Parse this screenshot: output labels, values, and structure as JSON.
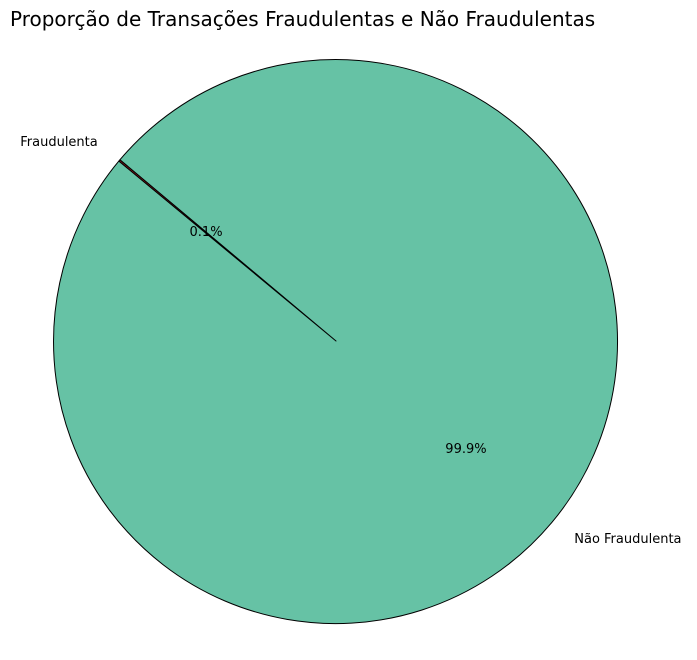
{
  "chart_data": {
    "type": "pie",
    "title": "Proporção de Transações Fraudulentas e Não Fraudulentas",
    "slices": [
      {
        "label": "Fraudulenta",
        "value": 0.1,
        "pct_label": "0.1%",
        "color": "#8b1a1a"
      },
      {
        "label": "Não Fraudulenta",
        "value": 99.9,
        "pct_label": "99.9%",
        "color": "#66c2a5"
      }
    ],
    "edge_color": "#000000"
  }
}
